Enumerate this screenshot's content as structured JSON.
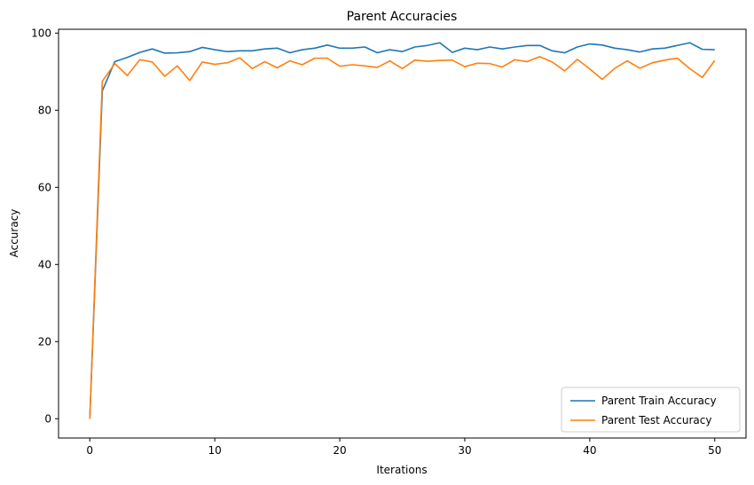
{
  "chart_data": {
    "type": "line",
    "title": "Parent Accuracies",
    "xlabel": "Iterations",
    "ylabel": "Accuracy",
    "xlim": [
      -2.5,
      52.5
    ],
    "ylim": [
      -5,
      101
    ],
    "xticks": [
      0,
      10,
      20,
      30,
      40,
      50
    ],
    "yticks": [
      0,
      20,
      40,
      60,
      80,
      100
    ],
    "grid": false,
    "legend_position": "bottom-right",
    "x": [
      0,
      1,
      2,
      3,
      4,
      5,
      6,
      7,
      8,
      9,
      10,
      11,
      12,
      13,
      14,
      15,
      16,
      17,
      18,
      19,
      20,
      21,
      22,
      23,
      24,
      25,
      26,
      27,
      28,
      29,
      30,
      31,
      32,
      33,
      34,
      35,
      36,
      37,
      38,
      39,
      40,
      41,
      42,
      43,
      44,
      45,
      46,
      47,
      48,
      49,
      50
    ],
    "series": [
      {
        "name": "Parent Train Accuracy",
        "color": "#1f77b4",
        "values": [
          0,
          85.0,
          92.6,
          93.7,
          95.0,
          95.9,
          94.8,
          94.9,
          95.2,
          96.3,
          95.7,
          95.2,
          95.4,
          95.4,
          95.9,
          96.1,
          94.9,
          95.7,
          96.1,
          96.9,
          96.1,
          96.1,
          96.4,
          94.9,
          95.7,
          95.2,
          96.4,
          96.8,
          97.5,
          95.0,
          96.1,
          95.7,
          96.4,
          95.9,
          96.4,
          96.8,
          96.8,
          95.4,
          94.9,
          96.4,
          97.2,
          96.9,
          96.1,
          95.7,
          95.1,
          95.9,
          96.1,
          96.8,
          97.5,
          95.8,
          95.7
        ]
      },
      {
        "name": "Parent Test Accuracy",
        "color": "#ff7f0e",
        "values": [
          0,
          87.5,
          92.1,
          89.0,
          93.1,
          92.5,
          88.8,
          91.5,
          87.7,
          92.5,
          91.9,
          92.3,
          93.6,
          90.8,
          92.6,
          91.0,
          92.8,
          91.8,
          93.5,
          93.5,
          91.4,
          91.8,
          91.5,
          91.1,
          92.8,
          90.8,
          93.0,
          92.7,
          92.9,
          93.0,
          91.3,
          92.2,
          92.1,
          91.2,
          93.1,
          92.6,
          93.9,
          92.5,
          90.2,
          93.2,
          90.7,
          88.0,
          90.9,
          92.8,
          90.9,
          92.3,
          93.0,
          93.5,
          90.8,
          88.5,
          92.9
        ]
      }
    ]
  }
}
